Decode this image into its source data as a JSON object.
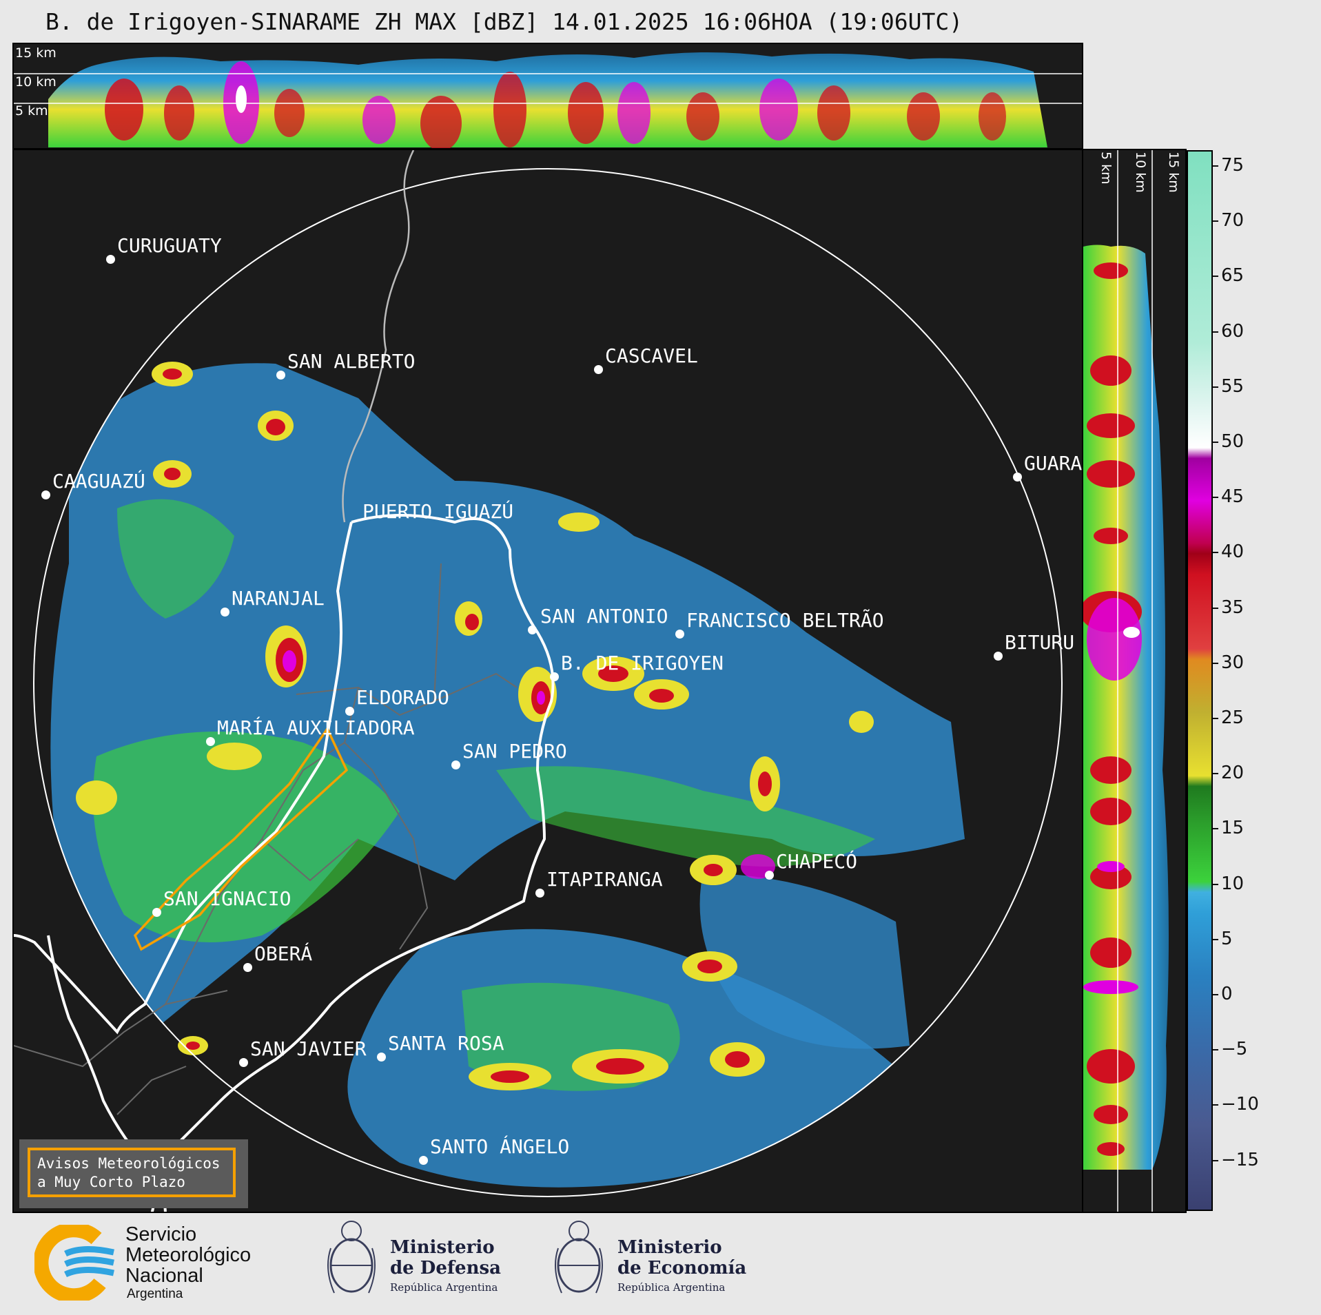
{
  "title": "B. de Irigoyen-SINARAME ZH MAX [dBZ] 14.01.2025 16:06HOA (19:06UTC)",
  "top_panel": {
    "height_labels": [
      "15 km",
      "10 km",
      "5 km"
    ]
  },
  "side_panel": {
    "height_labels": [
      "5 km",
      "10 km",
      "15 km"
    ]
  },
  "cities": [
    {
      "name": "CURUGUATY"
    },
    {
      "name": "SAN ALBERTO"
    },
    {
      "name": "CASCAVEL"
    },
    {
      "name": "CAAGUAZÚ"
    },
    {
      "name": "GUARA"
    },
    {
      "name": "PUERTO IGUAZÚ"
    },
    {
      "name": "NARANJAL"
    },
    {
      "name": "SAN ANTONIO"
    },
    {
      "name": "FRANCISCO BELTRÃO"
    },
    {
      "name": "BITURU"
    },
    {
      "name": "B. DE IRIGOYEN"
    },
    {
      "name": "ELDORADO"
    },
    {
      "name": "MARÍA AUXILIADORA"
    },
    {
      "name": "SAN PEDRO"
    },
    {
      "name": "ITAPIRANGA"
    },
    {
      "name": "CHAPECÓ"
    },
    {
      "name": "SAN IGNACIO"
    },
    {
      "name": "OBERÁ"
    },
    {
      "name": "SAN JAVIER"
    },
    {
      "name": "SANTA ROSA"
    },
    {
      "name": "SANTO ÁNGELO"
    }
  ],
  "colorbar": {
    "unit": "dBZ",
    "ticks": [
      "75",
      "70",
      "65",
      "60",
      "55",
      "50",
      "45",
      "40",
      "35",
      "30",
      "25",
      "20",
      "15",
      "10",
      "5",
      "0",
      "−5",
      "−10",
      "−15"
    ],
    "colors": {
      "blue_low": "#3a4070",
      "blue": "#2f9fd8",
      "green": "#3cd23c",
      "yellow": "#e8e030",
      "orange": "#e08a20",
      "red": "#d01020",
      "magenta": "#e000e0",
      "white": "#ffffff",
      "teal": "#80e0c0"
    }
  },
  "legend": {
    "line1": "Avisos Meteorológicos",
    "line2": "a Muy Corto Plazo"
  },
  "footer": {
    "smn_line1": "Servicio",
    "smn_line2": "Meteorológico",
    "smn_line3": "Nacional",
    "smn_line4": "Argentina",
    "defensa_line1": "Ministerio",
    "defensa_line2": "de Defensa",
    "defensa_sub": "República Argentina",
    "economia_line1": "Ministerio",
    "economia_line2": "de Economía",
    "economia_sub": "República Argentina"
  }
}
